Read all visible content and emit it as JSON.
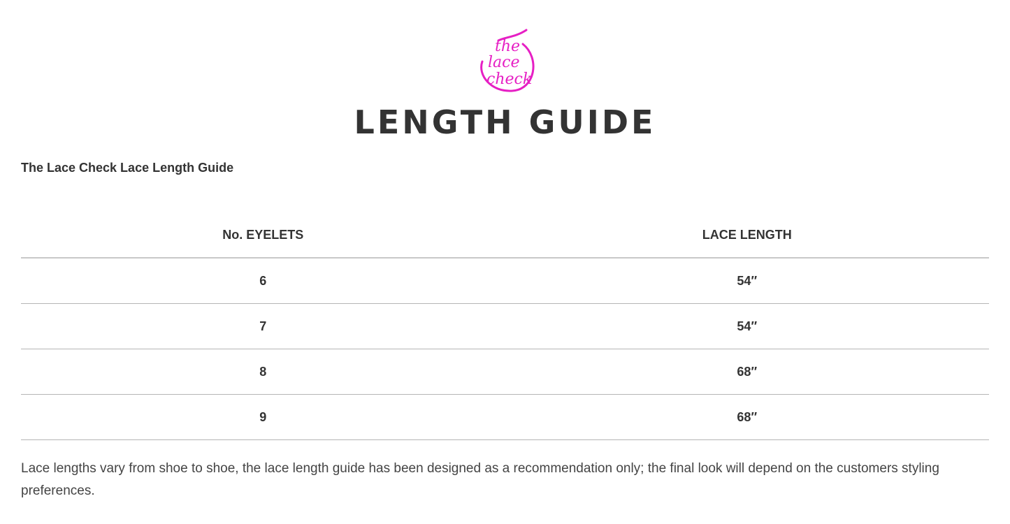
{
  "logo": {
    "text": "the lace check",
    "color": "#e61fc4"
  },
  "page_title": "LENGTH GUIDE",
  "subtitle": "The Lace Check Lace Length Guide",
  "table": {
    "headers": [
      "No. EYELETS",
      "LACE LENGTH"
    ],
    "rows": [
      [
        "6",
        "54″"
      ],
      [
        "7",
        "54″"
      ],
      [
        "8",
        "68″"
      ],
      [
        "9",
        "68″"
      ]
    ]
  },
  "note": "Lace lengths vary from shoe to shoe, the lace length guide has been designed as a recommendation only; the final look will depend on the customers styling preferences."
}
